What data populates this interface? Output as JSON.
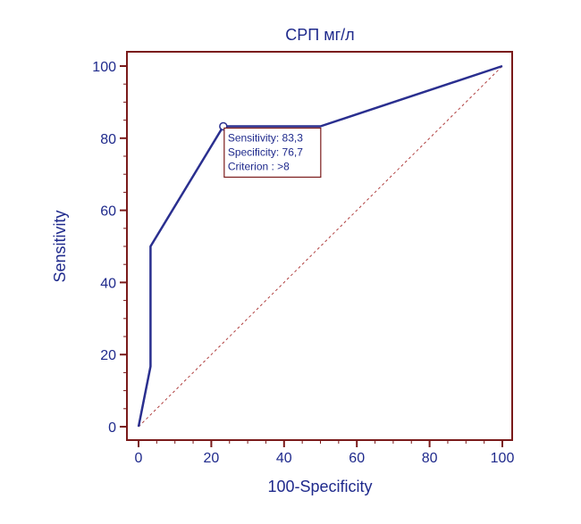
{
  "chart_data": {
    "type": "line",
    "title": "СРП мг/л",
    "xlabel": "100-Specificity",
    "ylabel": "Sensitivity",
    "xlim": [
      0,
      100
    ],
    "ylim": [
      0,
      100
    ],
    "x_ticks": [
      0,
      20,
      40,
      60,
      80,
      100
    ],
    "y_ticks": [
      0,
      20,
      40,
      60,
      80,
      100
    ],
    "grid": false,
    "series": [
      {
        "name": "ROC curve",
        "x": [
          0,
          3.3,
          3.3,
          23.3,
          50,
          100
        ],
        "y": [
          0,
          16.7,
          50,
          83.3,
          83.3,
          100
        ]
      },
      {
        "name": "Reference line",
        "x": [
          0,
          100
        ],
        "y": [
          0,
          100
        ]
      }
    ],
    "optimal_point": {
      "x": 23.3,
      "y": 83.3
    },
    "annotation": [
      "Sensitivity: 83,3",
      "Specificity: 76,7",
      "Criterion : >8"
    ],
    "colors": {
      "curve": "#2a2f8f",
      "frame": "#7a1a1a",
      "reference": "#b04040",
      "text": "#1f2a8c"
    }
  }
}
